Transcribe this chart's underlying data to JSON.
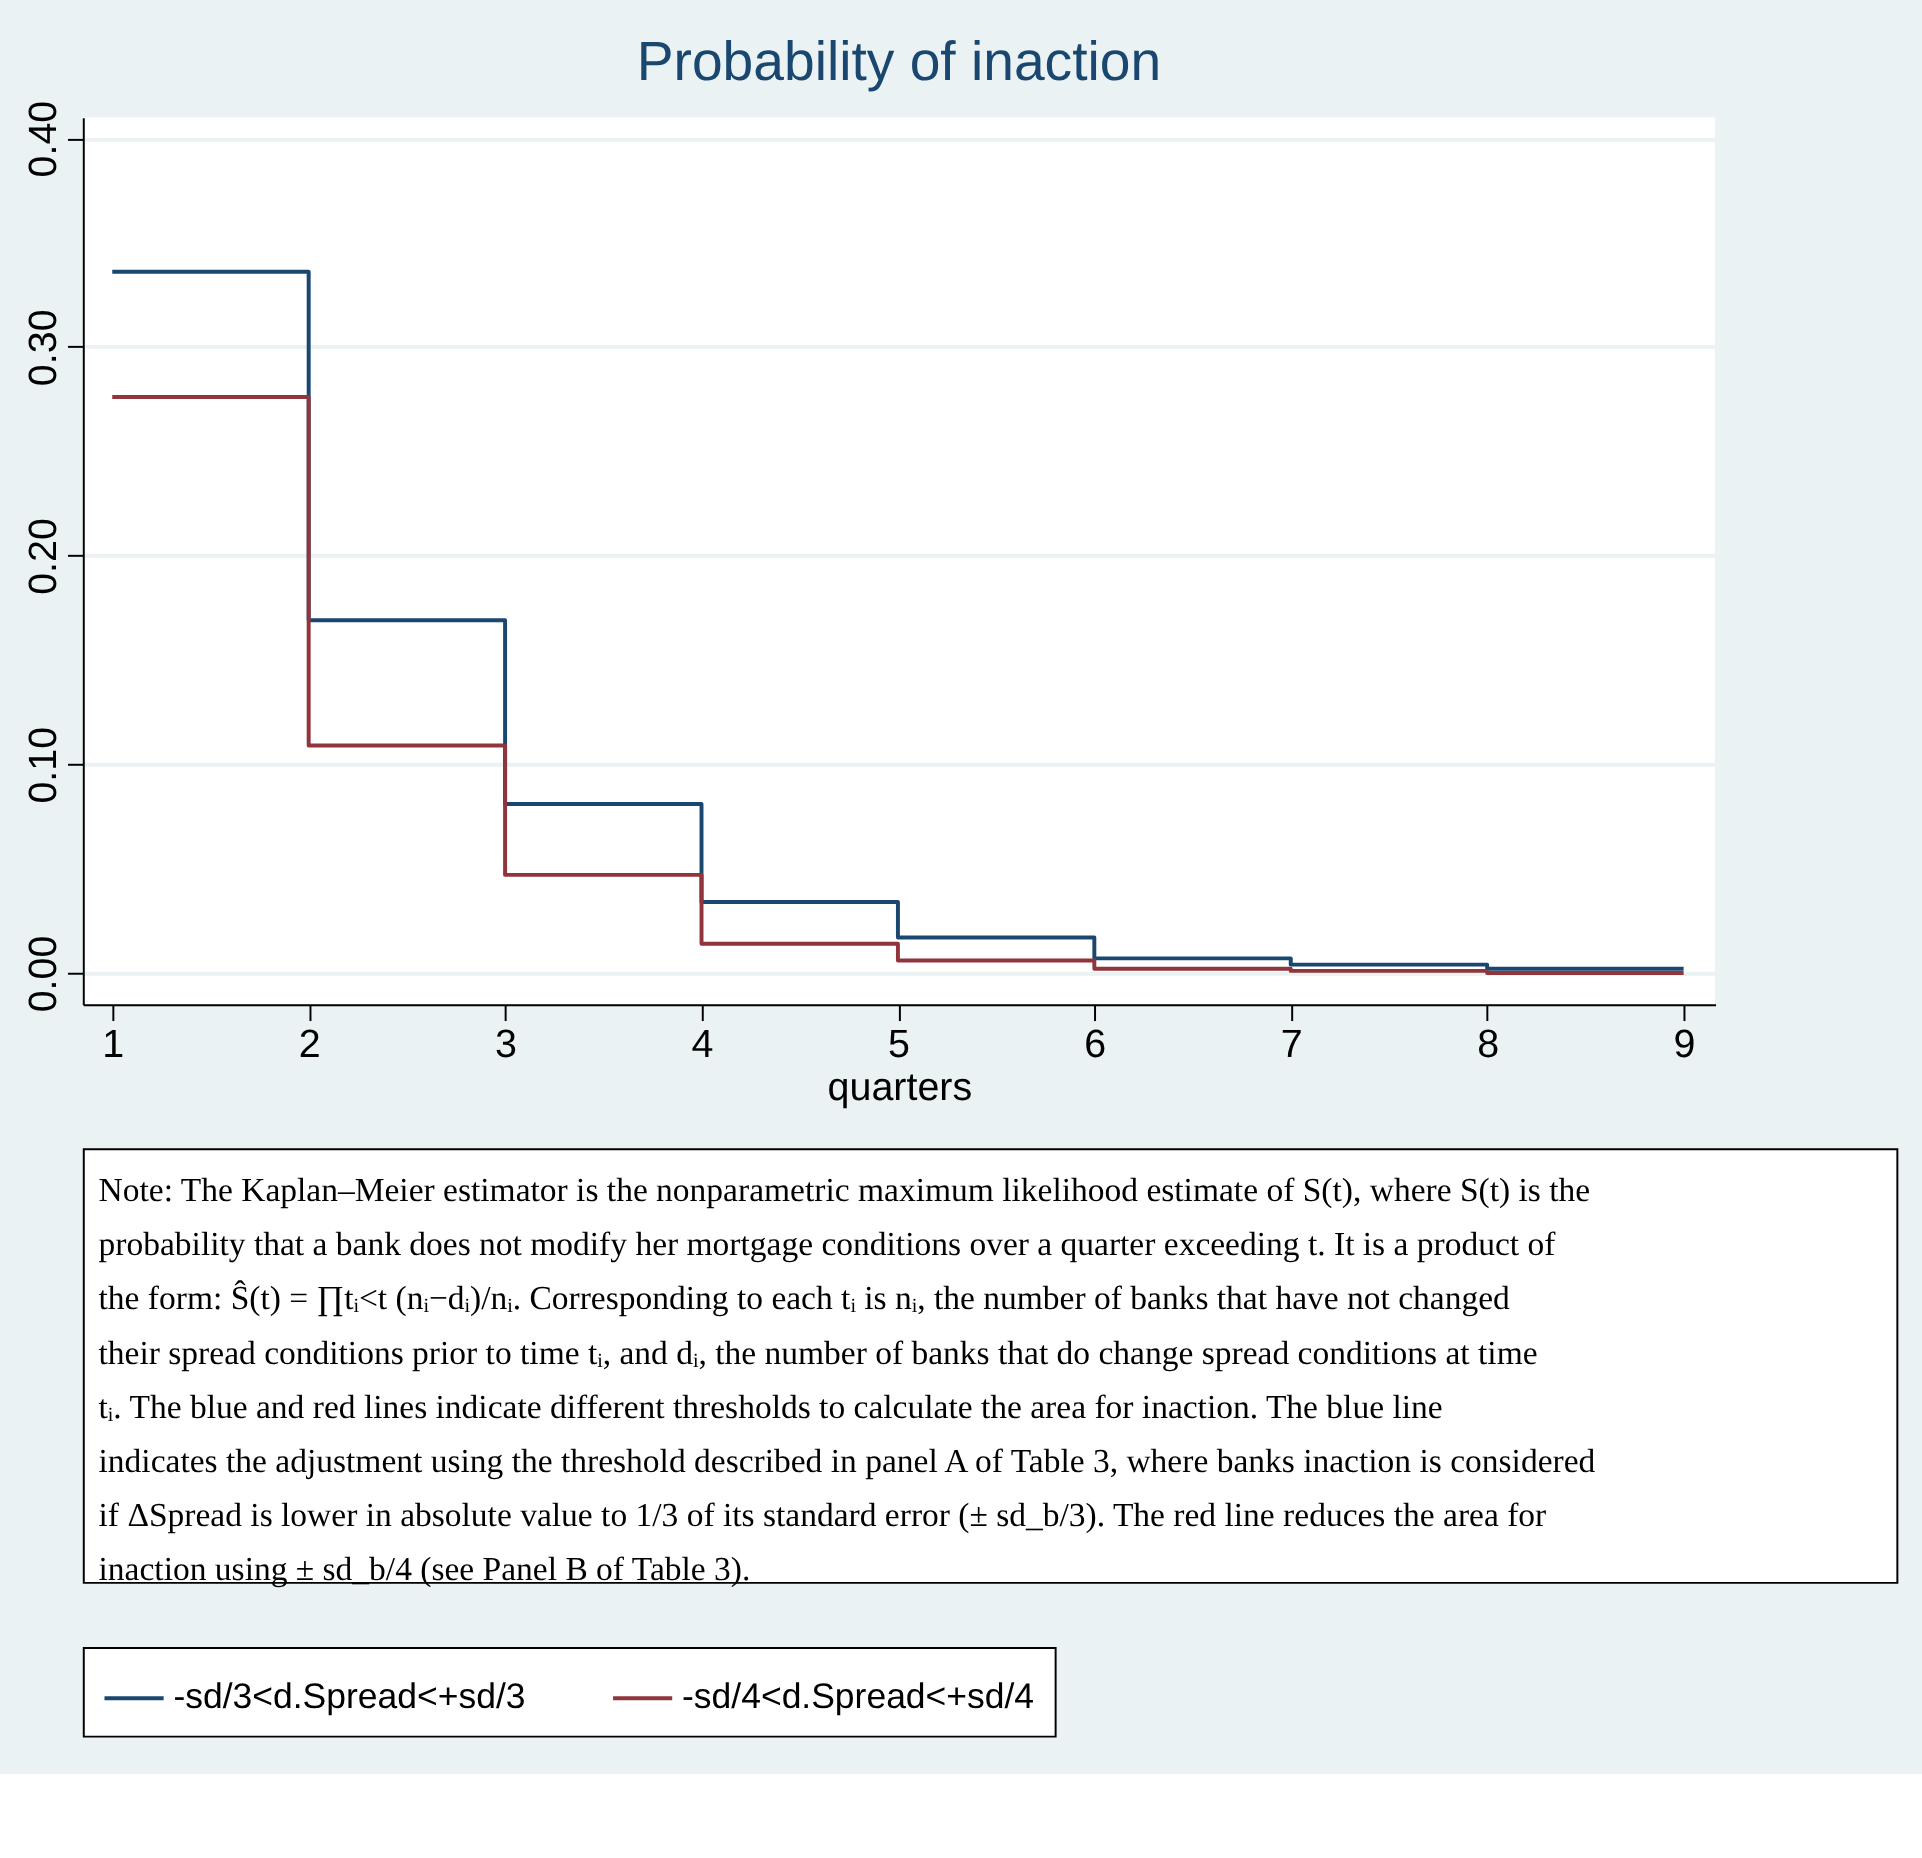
{
  "chart_data": {
    "type": "step",
    "title": "Probability of inaction",
    "xlabel": "quarters",
    "x": [
      1,
      2,
      3,
      4,
      5,
      6,
      7,
      8,
      9
    ],
    "series": [
      {
        "name": "-sd/3<d.Spread<+sd/3",
        "color": "#1a476f",
        "values": [
          0.336,
          0.169,
          0.081,
          0.034,
          0.017,
          0.007,
          0.004,
          0.002,
          0.002
        ]
      },
      {
        "name": "-sd/4<d.Spread<+sd/4",
        "color": "#90353b",
        "values": [
          0.276,
          0.109,
          0.047,
          0.014,
          0.006,
          0.002,
          0.001,
          0.0,
          0.0
        ]
      }
    ],
    "xlim": [
      0.85,
      9.16
    ],
    "xticks": [
      1,
      2,
      3,
      4,
      5,
      6,
      7,
      8,
      9
    ],
    "ylim": [
      -0.015,
      0.41
    ],
    "yticks": [
      {
        "value": 0,
        "label": "0.00"
      },
      {
        "value": 0.1,
        "label": "0.10"
      },
      {
        "value": 0.2,
        "label": "0.20"
      },
      {
        "value": 0.3,
        "label": "0.30"
      },
      {
        "value": 0.4,
        "label": "0.40"
      }
    ],
    "grid": "y",
    "legend": "bottom",
    "annotations": [
      "Note: The Kaplan–Meier estimator is the nonparametric maximum likelihood estimate of S(t), where S(t) is the probability that a bank does not modify her mortgage conditions over a quarter exceeding t. It is a product of the form: Ŝ(t) = ∏tᵢ<t (nᵢ−dᵢ)/nᵢ. Corresponding to each tᵢ is nᵢ, the number of banks that have not changed their spread conditions prior to time tᵢ, and dᵢ, the number of banks that do change spread conditions at time tᵢ. The blue and red lines indicate different thresholds to calculate the area for inaction. The blue line indicates the adjustment using the threshold described in panel A of Table 3, where banks inaction is considered if ΔSpread is lower in absolute value to 1/3 of its standard error (± sd_b/3). The red line reduces the area for inaction using ± sd_b/4 (see Panel B of Table 3)."
    ]
  }
}
